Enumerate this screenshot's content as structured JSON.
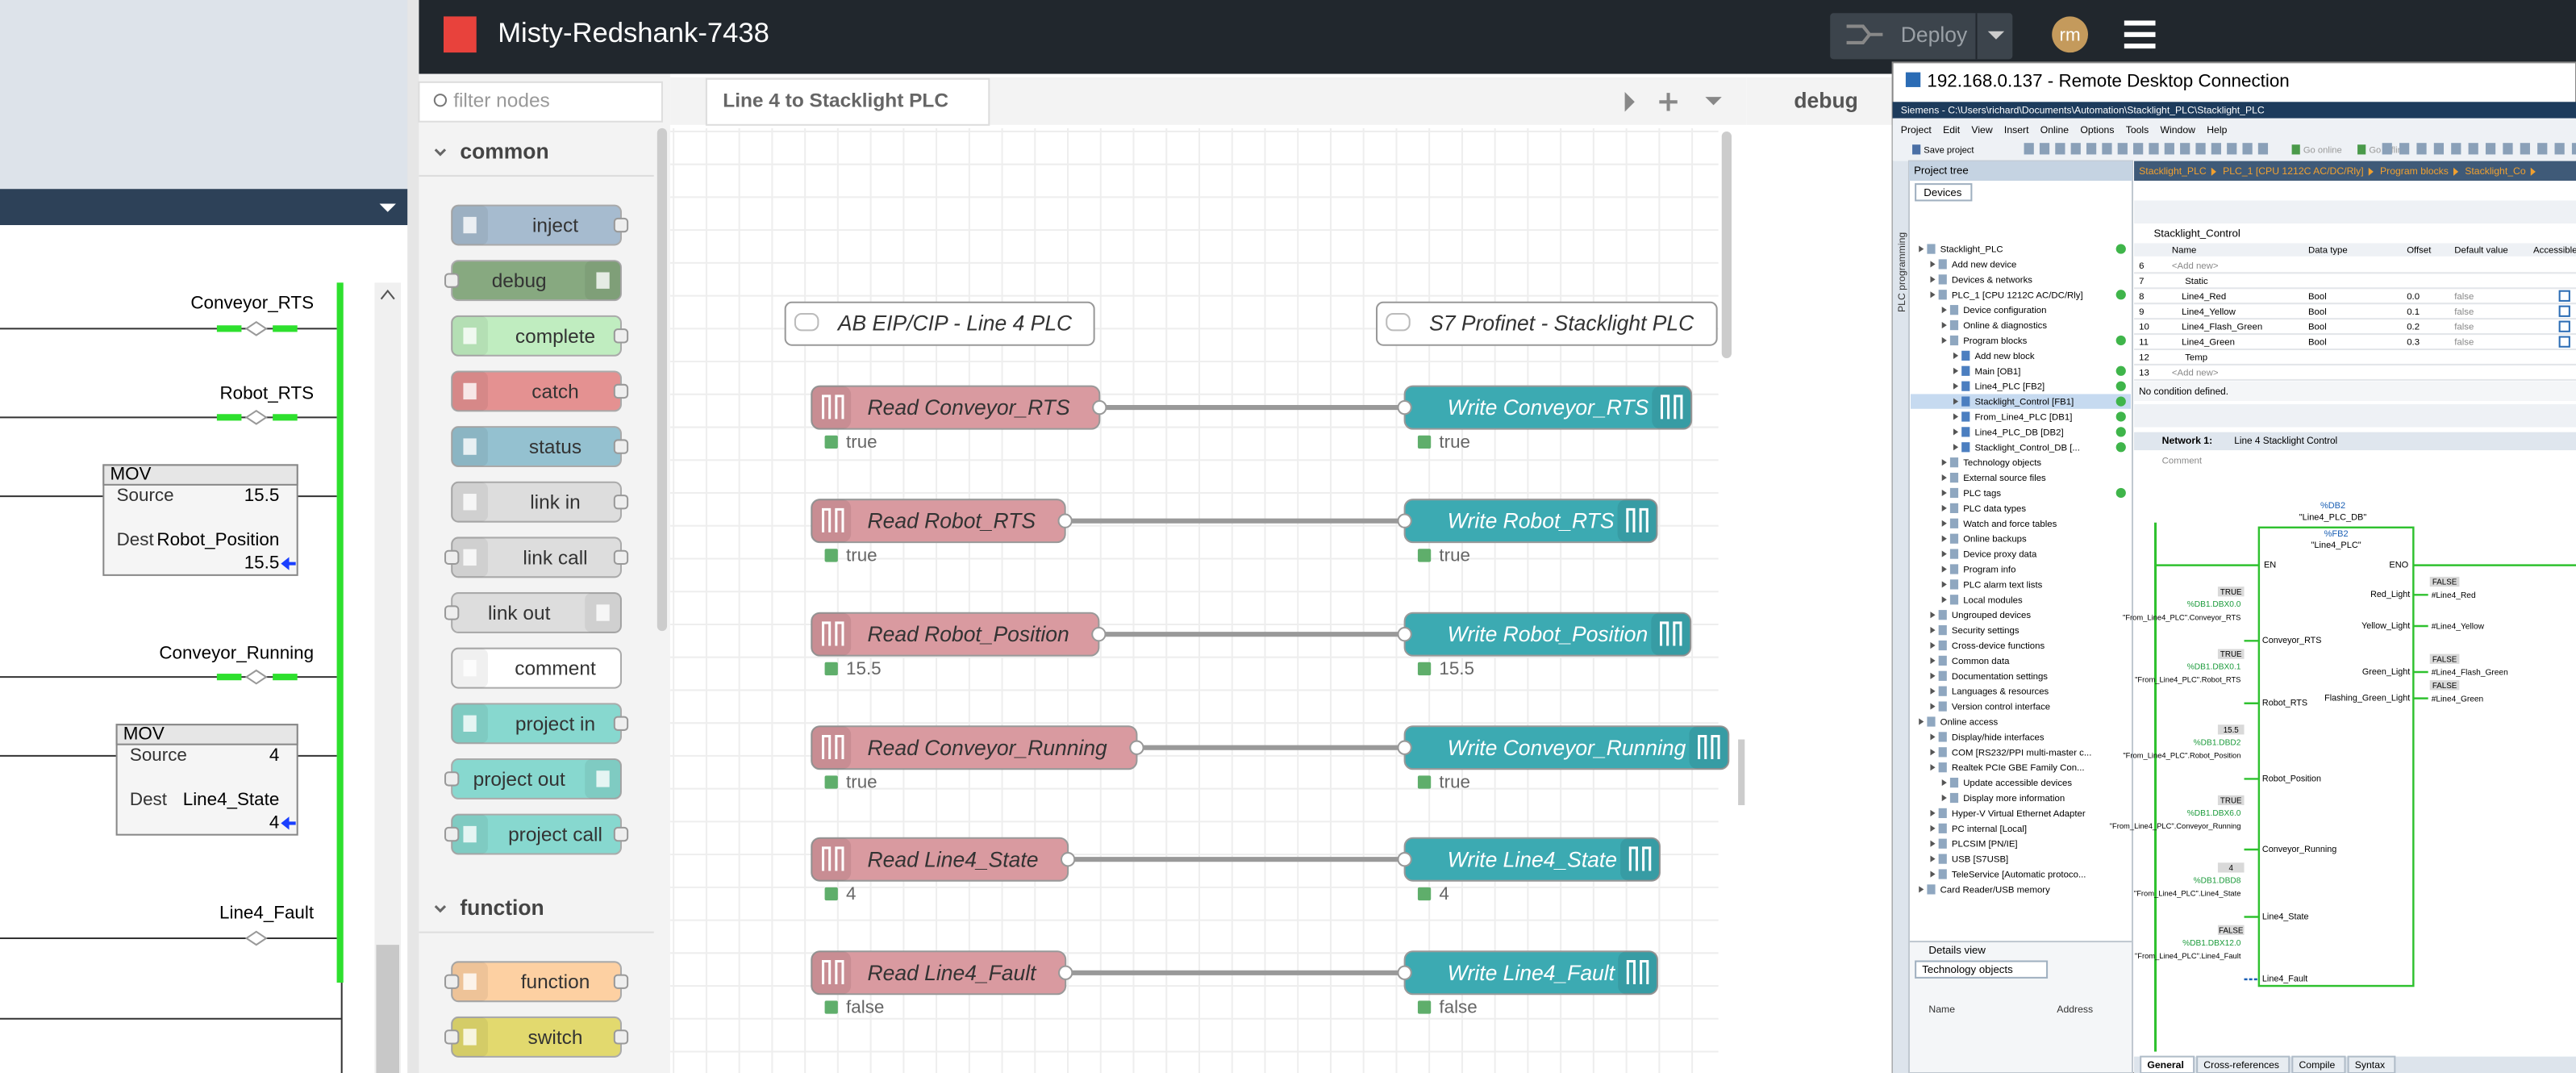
{
  "ladder": {
    "rungs": [
      "Conveyor_RTS",
      "Robot_RTS",
      "Conveyor_Running",
      "Line4_Fault"
    ],
    "mov_blocks": [
      {
        "title": "MOV",
        "source_label": "Source",
        "source": "15.5",
        "dest_label": "Dest",
        "dest": "Robot_Position",
        "dest_value": "15.5"
      },
      {
        "title": "MOV",
        "source_label": "Source",
        "source": "4",
        "dest_label": "Dest",
        "dest": "Line4_State",
        "dest_value": "4"
      }
    ]
  },
  "node_red": {
    "header": {
      "title": "Misty-Redshank-7438",
      "deploy": "Deploy",
      "user": "rm"
    },
    "palette": {
      "search_placeholder": "filter nodes",
      "categories": [
        {
          "name": "common",
          "nodes": [
            "inject",
            "debug",
            "complete",
            "catch",
            "status",
            "link in",
            "link call",
            "link out",
            "comment",
            "project in",
            "project out",
            "project call"
          ]
        },
        {
          "name": "function",
          "nodes": [
            "function",
            "switch"
          ]
        }
      ]
    },
    "workspace": {
      "tab": "Line 4 to Stacklight PLC",
      "comments": [
        "AB EIP/CIP - Line 4 PLC",
        "S7 Profinet - Stacklight PLC"
      ],
      "flows": [
        {
          "read": "Read Conveyor_RTS",
          "read_status": "true",
          "write": "Write Conveyor_RTS",
          "write_status": "true"
        },
        {
          "read": "Read Robot_RTS",
          "read_status": "true",
          "write": "Write Robot_RTS",
          "write_status": "true"
        },
        {
          "read": "Read Robot_Position",
          "read_status": "15.5",
          "write": "Write Robot_Position",
          "write_status": "15.5"
        },
        {
          "read": "Read Conveyor_Running",
          "read_status": "true",
          "write": "Write Conveyor_Running",
          "write_status": "true"
        },
        {
          "read": "Read Line4_State",
          "read_status": "4",
          "write": "Write Line4_State",
          "write_status": "4"
        },
        {
          "read": "Read Line4_Fault",
          "read_status": "false",
          "write": "Write Line4_Fault",
          "write_status": "false"
        }
      ]
    },
    "sidebar": {
      "tab": "debug"
    }
  },
  "remote_desktop": {
    "title": "192.168.0.137 - Remote Desktop Connection",
    "tia": {
      "window_title": "Siemens  -  C:\\Users\\richard\\Documents\\Automation\\Stacklight_PLC\\Stacklight_PLC",
      "menu": [
        "Project",
        "Edit",
        "View",
        "Insert",
        "Online",
        "Options",
        "Tools",
        "Window",
        "Help"
      ],
      "toolbar": [
        "Save project",
        "Go online",
        "Go offline"
      ],
      "side_tab": "PLC programming",
      "project_tree": {
        "title": "Project tree",
        "tab": "Devices",
        "items": [
          {
            "level": 0,
            "text": "Stacklight_PLC"
          },
          {
            "level": 1,
            "text": "Add new device"
          },
          {
            "level": 1,
            "text": "Devices & networks"
          },
          {
            "level": 1,
            "text": "PLC_1 [CPU 1212C AC/DC/Rly]"
          },
          {
            "level": 2,
            "text": "Device configuration"
          },
          {
            "level": 2,
            "text": "Online & diagnostics"
          },
          {
            "level": 2,
            "text": "Program blocks"
          },
          {
            "level": 3,
            "text": "Add new block"
          },
          {
            "level": 3,
            "text": "Main [OB1]"
          },
          {
            "level": 3,
            "text": "Line4_PLC [FB2]"
          },
          {
            "level": 3,
            "text": "Stacklight_Control [FB1]"
          },
          {
            "level": 3,
            "text": "From_Line4_PLC [DB1]"
          },
          {
            "level": 3,
            "text": "Line4_PLC_DB [DB2]"
          },
          {
            "level": 3,
            "text": "Stacklight_Control_DB [..."
          },
          {
            "level": 2,
            "text": "Technology objects"
          },
          {
            "level": 2,
            "text": "External source files"
          },
          {
            "level": 2,
            "text": "PLC tags"
          },
          {
            "level": 2,
            "text": "PLC data types"
          },
          {
            "level": 2,
            "text": "Watch and force tables"
          },
          {
            "level": 2,
            "text": "Online backups"
          },
          {
            "level": 2,
            "text": "Device proxy data"
          },
          {
            "level": 2,
            "text": "Program info"
          },
          {
            "level": 2,
            "text": "PLC alarm text lists"
          },
          {
            "level": 2,
            "text": "Local modules"
          },
          {
            "level": 1,
            "text": "Ungrouped devices"
          },
          {
            "level": 1,
            "text": "Security settings"
          },
          {
            "level": 1,
            "text": "Cross-device functions"
          },
          {
            "level": 1,
            "text": "Common data"
          },
          {
            "level": 1,
            "text": "Documentation settings"
          },
          {
            "level": 1,
            "text": "Languages & resources"
          },
          {
            "level": 1,
            "text": "Version control interface"
          },
          {
            "level": 0,
            "text": "Online access"
          },
          {
            "level": 1,
            "text": "Display/hide interfaces"
          },
          {
            "level": 1,
            "text": "COM [RS232/PPI multi-master c..."
          },
          {
            "level": 1,
            "text": "Realtek PCIe GBE Family Con..."
          },
          {
            "level": 2,
            "text": "Update accessible devices"
          },
          {
            "level": 2,
            "text": "Display more information"
          },
          {
            "level": 1,
            "text": "Hyper-V Virtual Ethernet Adapter"
          },
          {
            "level": 1,
            "text": "PC internal [Local]"
          },
          {
            "level": 1,
            "text": "PLCSIM [PN/IE]"
          },
          {
            "level": 1,
            "text": "USB [S7USB]"
          },
          {
            "level": 1,
            "text": "TeleService [Automatic protoco..."
          },
          {
            "level": 0,
            "text": "Card Reader/USB memory"
          }
        ]
      },
      "details_view": {
        "title": "Details view",
        "tab": "Technology objects",
        "columns": [
          "Name",
          "Address"
        ]
      },
      "breadcrumb": [
        "Stacklight_PLC",
        "PLC_1 [CPU 1212C AC/DC/Rly]",
        "Program blocks",
        "Stacklight_Co"
      ],
      "interface": {
        "block": "Stacklight_Control",
        "columns": [
          "Name",
          "Data type",
          "Offset",
          "Default value",
          "Accessible"
        ],
        "rows": [
          [
            "6",
            "<Add new>",
            "",
            "",
            ""
          ],
          [
            "7",
            "Static",
            "",
            "",
            ""
          ],
          [
            "8",
            "Line4_Red",
            "Bool",
            "0.0",
            "false"
          ],
          [
            "9",
            "Line4_Yellow",
            "Bool",
            "0.1",
            "false"
          ],
          [
            "10",
            "Line4_Flash_Green",
            "Bool",
            "0.2",
            "false"
          ],
          [
            "11",
            "Line4_Green",
            "Bool",
            "0.3",
            "false"
          ],
          [
            "12",
            "Temp",
            "",
            "",
            ""
          ],
          [
            "13",
            "<Add new>",
            "",
            "",
            ""
          ]
        ]
      },
      "condition": "No condition defined.",
      "network": {
        "title": "Network 1:",
        "name": "Line 4 Stacklight Control",
        "comment": "Comment",
        "instance_address": "%DB2",
        "instance_name": "\"Line4_PLC_DB\"",
        "block_address": "%FB2",
        "block_name": "\"Line4_PLC\"",
        "en": "EN",
        "eno": "ENO",
        "inputs": [
          {
            "pin": "Conveyor_RTS",
            "value": "TRUE",
            "address": "%DB1.DBX0.0",
            "operand": "\"From_Line4_PLC\".Conveyor_RTS"
          },
          {
            "pin": "Robot_RTS",
            "value": "TRUE",
            "address": "%DB1.DBX0.1",
            "operand": "\"From_Line4_PLC\".Robot_RTS"
          },
          {
            "pin": "Robot_Position",
            "value": "15.5",
            "address": "%DB1.DBD2",
            "operand": "\"From_Line4_PLC\".Robot_Position"
          },
          {
            "pin": "Conveyor_Running",
            "value": "TRUE",
            "address": "%DB1.DBX6.0",
            "operand": "\"From_Line4_PLC\".Conveyor_Running"
          },
          {
            "pin": "Line4_State",
            "value": "4",
            "address": "%DB1.DBD8",
            "operand": "\"From_Line4_PLC\".Line4_State"
          },
          {
            "pin": "Line4_Fault",
            "value": "FALSE",
            "address": "%DB1.DBX12.0",
            "operand": "\"From_Line4_PLC\".Line4_Fault"
          }
        ],
        "outputs": [
          {
            "pin": "Red_Light",
            "value": "FALSE",
            "operand": "#Line4_Red"
          },
          {
            "pin": "Yellow_Light",
            "value": "",
            "operand": "#Line4_Yellow"
          },
          {
            "pin": "Green_Light",
            "value": "FALSE",
            "operand": "#Line4_Flash_Green"
          },
          {
            "pin": "Flashing_Green_Light",
            "value": "FALSE",
            "operand": "#Line4_Green"
          }
        ]
      },
      "bottom_tabs": [
        "General",
        "Cross-references",
        "Compile",
        "Syntax"
      ]
    }
  }
}
